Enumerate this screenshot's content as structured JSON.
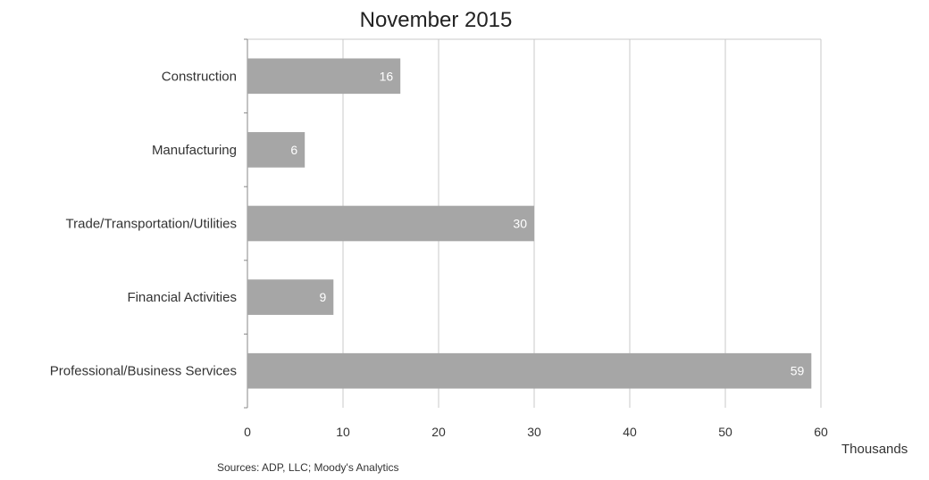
{
  "chart_data": {
    "type": "bar",
    "orientation": "horizontal",
    "title": "November 2015",
    "categories": [
      "Construction",
      "Manufacturing",
      "Trade/Transportation/Utilities",
      "Financial Activities",
      "Professional/Business Services"
    ],
    "values": [
      16,
      6,
      30,
      9,
      59
    ],
    "data_labels": [
      "16",
      "6",
      "30",
      "9",
      "59"
    ],
    "xlim": [
      0,
      60
    ],
    "x_ticks": [
      0,
      10,
      20,
      30,
      40,
      50,
      60
    ],
    "x_unit_label": "Thousands",
    "grid": true,
    "bar_color": "#a6a6a6",
    "source": "Sources: ADP, LLC; Moody's Analytics"
  }
}
